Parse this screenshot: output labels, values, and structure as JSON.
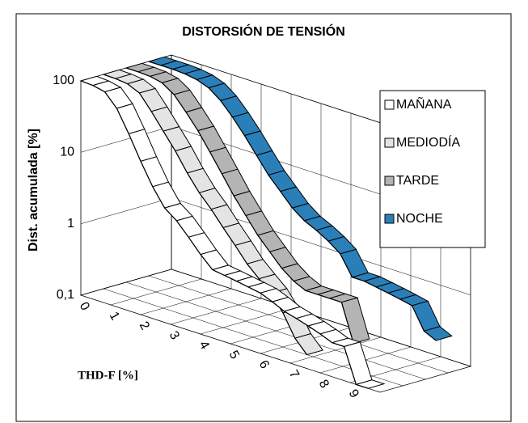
{
  "chart_data": {
    "type": "line3d",
    "title": "DISTORSIÓN DE TENSIÓN",
    "xlabel": "THD-F [%]",
    "ylabel": "Dist. acumulada [%]",
    "x": [
      0,
      0.4,
      0.8,
      1.2,
      1.6,
      2,
      2.4,
      2.8,
      3.2,
      3.6,
      4,
      4.4,
      4.8,
      5.2,
      5.6,
      6,
      6.4,
      6.8,
      7.2,
      7.6,
      8,
      8.4,
      8.8,
      9.2,
      9.6
    ],
    "xlim": [
      0,
      10
    ],
    "xticks": [
      0,
      1,
      2,
      3,
      4,
      5,
      6,
      7,
      8,
      9
    ],
    "ylim": [
      0.1,
      100
    ],
    "yticks": [
      {
        "value": 0.1,
        "label": "0,1"
      },
      1,
      10,
      100
    ],
    "log_y": true,
    "grid": true,
    "legend": "right",
    "series": [
      {
        "name": "MAÑANA",
        "color": "#ffffff",
        "values": [
          100,
          98,
          90,
          60,
          30,
          14,
          7,
          4,
          3,
          2,
          1.3,
          0.9,
          0.85,
          0.8,
          0.75,
          0.7,
          0.6,
          0.5,
          0.45,
          0.4,
          0.35,
          0.3,
          0.3,
          0.1,
          0.1
        ]
      },
      {
        "name": "MEDIODÍA",
        "color": "#e4e4e4",
        "values": [
          100,
          99,
          95,
          80,
          50,
          30,
          18,
          10,
          6,
          4,
          2.5,
          1.6,
          1,
          0.7,
          0.5,
          0.3,
          0.15,
          0.1,
          null,
          null,
          null,
          null,
          null,
          null,
          null
        ]
      },
      {
        "name": "TARDE",
        "color": "#b4b4b4",
        "values": [
          100,
          100,
          98,
          90,
          70,
          45,
          28,
          16,
          9,
          5,
          3,
          1.8,
          1.2,
          0.8,
          0.6,
          0.5,
          0.5,
          0.5,
          0.5,
          0.15,
          null,
          null,
          null,
          null,
          null
        ]
      },
      {
        "name": "NOCHE",
        "color": "#2b7fb9",
        "values": [
          100,
          100,
          100,
          98,
          92,
          80,
          60,
          40,
          25,
          15,
          9,
          6,
          4,
          3,
          2.5,
          2,
          1.5,
          0.8,
          0.8,
          0.75,
          0.7,
          0.65,
          0.6,
          0.3,
          0.25
        ]
      }
    ]
  }
}
